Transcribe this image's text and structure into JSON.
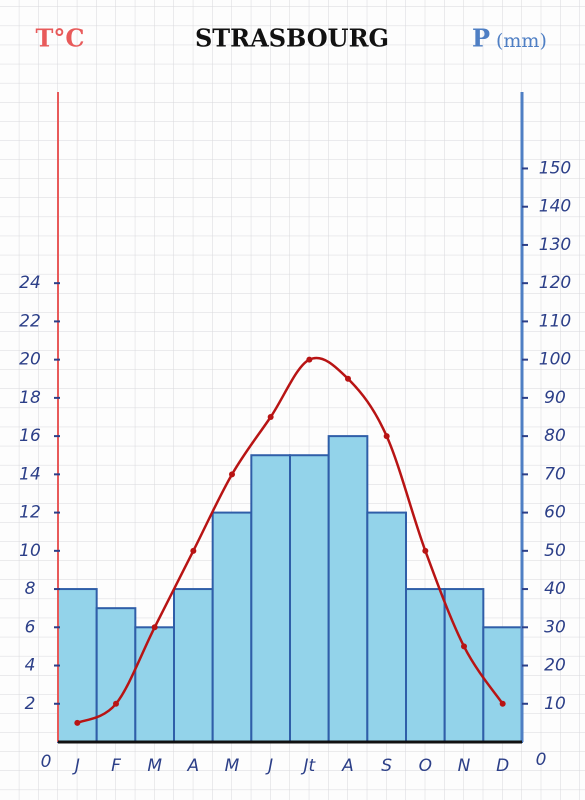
{
  "chart_data": {
    "type": "bar",
    "title": "STRASBOURG",
    "y_label": "T°C",
    "y2_label_symbol": "P",
    "y2_label_unit": "(mm)",
    "categories": [
      "J",
      "F",
      "M",
      "A",
      "M",
      "J",
      "Jt",
      "A",
      "S",
      "O",
      "N",
      "D"
    ],
    "series": [
      {
        "type": "bar",
        "color": "#93d3ea",
        "axis": "y2",
        "values": [
          40,
          35,
          30,
          40,
          60,
          75,
          75,
          80,
          60,
          40,
          40,
          30
        ]
      },
      {
        "type": "line",
        "color": "#b81414",
        "values": [
          1,
          2,
          6,
          10,
          14,
          17,
          20,
          19,
          16,
          10,
          5,
          2
        ]
      }
    ],
    "ylim": [
      0,
      34
    ],
    "yticks": [
      0,
      2,
      4,
      6,
      8,
      10,
      12,
      14,
      16,
      18,
      20,
      22,
      24
    ],
    "y2lim": [
      0,
      170
    ],
    "y2ticks": [
      0,
      10,
      20,
      30,
      40,
      50,
      60,
      70,
      80,
      90,
      100,
      110,
      120,
      130,
      140,
      150
    ],
    "y_color": "#e85a5a",
    "y2_color": "#4f7fc4",
    "grid": true
  }
}
